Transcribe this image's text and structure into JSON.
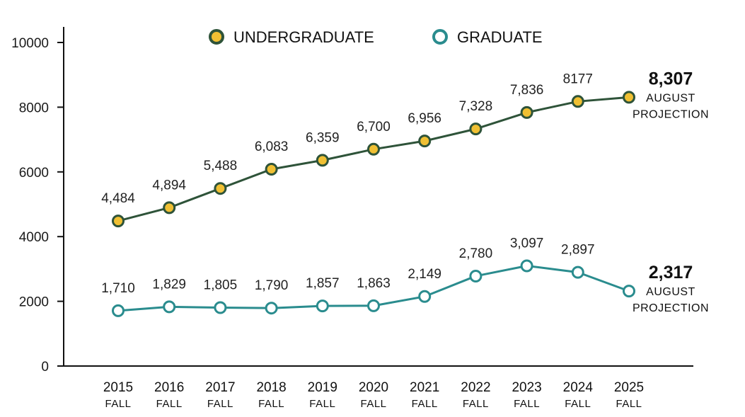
{
  "chart_data": {
    "type": "line",
    "categories": [
      "2015",
      "2016",
      "2017",
      "2018",
      "2019",
      "2020",
      "2021",
      "2022",
      "2023",
      "2024",
      "2025"
    ],
    "category_sublabel": "FALL",
    "ylim": [
      0,
      10000
    ],
    "yticks": [
      0,
      2000,
      4000,
      6000,
      8000,
      10000
    ],
    "series": [
      {
        "name": "UNDERGRADUATE",
        "values": [
          4484,
          4894,
          5488,
          6083,
          6359,
          6700,
          6956,
          7328,
          7836,
          8177,
          8307
        ],
        "labels": [
          "4,484",
          "4,894",
          "5,488",
          "6,083",
          "6,359",
          "6,700",
          "6,956",
          "7,328",
          "7,836",
          "8177",
          "8,307"
        ],
        "line_color": "#2e5339",
        "marker_fill": "#f0c033",
        "marker_edge": "#2e5339"
      },
      {
        "name": "GRADUATE",
        "values": [
          1710,
          1829,
          1805,
          1790,
          1857,
          1863,
          2149,
          2780,
          3097,
          2897,
          2317
        ],
        "labels": [
          "1,710",
          "1,829",
          "1,805",
          "1,790",
          "1,857",
          "1,863",
          "2,149",
          "2,780",
          "3,097",
          "2,897",
          "2,317"
        ],
        "line_color": "#2a8c8e",
        "marker_fill": "#ffffff",
        "marker_edge": "#2a8c8e"
      }
    ],
    "projection_note": [
      "AUGUST",
      "PROJECTION"
    ],
    "legend_position": "top-center"
  }
}
